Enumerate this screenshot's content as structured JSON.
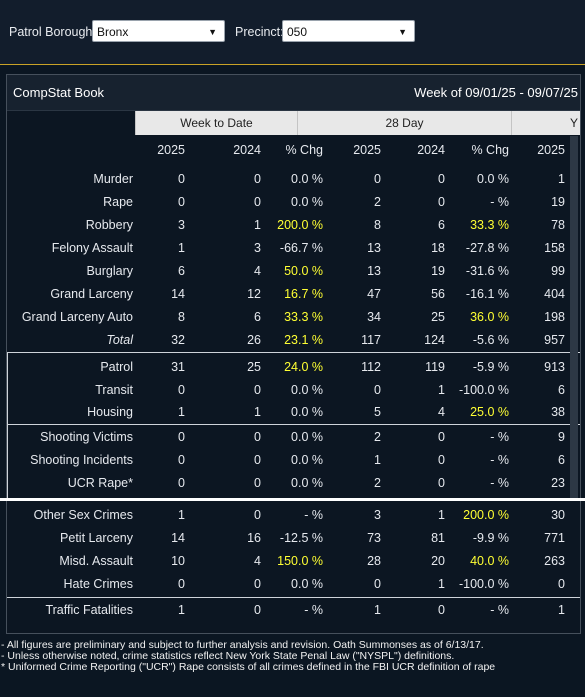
{
  "filters": {
    "borough_label": "Patrol Borough:",
    "borough_value": "Bronx",
    "precinct_label": "Precinct:",
    "precinct_value": "050"
  },
  "panel": {
    "title": "CompStat Book",
    "week": "Week of 09/01/25 - 09/07/25",
    "groups": [
      "Week to Date",
      "28 Day",
      "Y"
    ],
    "years": [
      "2025",
      "2024",
      "% Chg",
      "2025",
      "2024",
      "% Chg",
      "2025"
    ]
  },
  "rows": [
    {
      "label": "Murder",
      "italic": false,
      "v": [
        "0",
        "0",
        "0.0 %",
        "0",
        "0",
        "0.0 %",
        "1"
      ],
      "hi": [
        false,
        false,
        false,
        false,
        false,
        false,
        false
      ]
    },
    {
      "label": "Rape",
      "italic": false,
      "v": [
        "0",
        "0",
        "0.0 %",
        "2",
        "0",
        "- %",
        "19"
      ],
      "hi": [
        false,
        false,
        false,
        false,
        false,
        false,
        false
      ]
    },
    {
      "label": "Robbery",
      "italic": false,
      "v": [
        "3",
        "1",
        "200.0 %",
        "8",
        "6",
        "33.3 %",
        "78"
      ],
      "hi": [
        false,
        false,
        true,
        false,
        false,
        true,
        false
      ]
    },
    {
      "label": "Felony Assault",
      "italic": false,
      "v": [
        "1",
        "3",
        "-66.7 %",
        "13",
        "18",
        "-27.8 %",
        "158"
      ],
      "hi": [
        false,
        false,
        false,
        false,
        false,
        false,
        false
      ]
    },
    {
      "label": "Burglary",
      "italic": false,
      "v": [
        "6",
        "4",
        "50.0 %",
        "13",
        "19",
        "-31.6 %",
        "99"
      ],
      "hi": [
        false,
        false,
        true,
        false,
        false,
        false,
        false
      ]
    },
    {
      "label": "Grand Larceny",
      "italic": false,
      "v": [
        "14",
        "12",
        "16.7 %",
        "47",
        "56",
        "-16.1 %",
        "404"
      ],
      "hi": [
        false,
        false,
        true,
        false,
        false,
        false,
        false
      ]
    },
    {
      "label": "Grand Larceny Auto",
      "italic": false,
      "v": [
        "8",
        "6",
        "33.3 %",
        "34",
        "25",
        "36.0 %",
        "198"
      ],
      "hi": [
        false,
        false,
        true,
        false,
        false,
        true,
        false
      ]
    },
    {
      "label": "Total",
      "italic": true,
      "v": [
        "32",
        "26",
        "23.1 %",
        "117",
        "124",
        "-5.6 %",
        "957"
      ],
      "hi": [
        false,
        false,
        true,
        false,
        false,
        false,
        false
      ]
    },
    {
      "label": "Patrol",
      "italic": false,
      "v": [
        "31",
        "25",
        "24.0 %",
        "112",
        "119",
        "-5.9 %",
        "913"
      ],
      "hi": [
        false,
        false,
        true,
        false,
        false,
        false,
        false
      ]
    },
    {
      "label": "Transit",
      "italic": false,
      "v": [
        "0",
        "0",
        "0.0 %",
        "0",
        "1",
        "-100.0 %",
        "6"
      ],
      "hi": [
        false,
        false,
        false,
        false,
        false,
        false,
        false
      ]
    },
    {
      "label": "Housing",
      "italic": false,
      "v": [
        "1",
        "1",
        "0.0 %",
        "5",
        "4",
        "25.0 %",
        "38"
      ],
      "hi": [
        false,
        false,
        false,
        false,
        false,
        true,
        false
      ]
    },
    {
      "label": "Shooting Victims",
      "italic": false,
      "v": [
        "0",
        "0",
        "0.0 %",
        "2",
        "0",
        "- %",
        "9"
      ],
      "hi": [
        false,
        false,
        false,
        false,
        false,
        false,
        false
      ]
    },
    {
      "label": "Shooting Incidents",
      "italic": false,
      "v": [
        "0",
        "0",
        "0.0 %",
        "1",
        "0",
        "- %",
        "6"
      ],
      "hi": [
        false,
        false,
        false,
        false,
        false,
        false,
        false
      ]
    },
    {
      "label": "UCR Rape*",
      "italic": false,
      "v": [
        "0",
        "0",
        "0.0 %",
        "2",
        "0",
        "- %",
        "23"
      ],
      "hi": [
        false,
        false,
        false,
        false,
        false,
        false,
        false
      ]
    },
    {
      "label": "Other Sex Crimes",
      "italic": false,
      "v": [
        "1",
        "0",
        "- %",
        "3",
        "1",
        "200.0 %",
        "30"
      ],
      "hi": [
        false,
        false,
        false,
        false,
        false,
        true,
        false
      ]
    },
    {
      "label": "Petit Larceny",
      "italic": false,
      "v": [
        "14",
        "16",
        "-12.5 %",
        "73",
        "81",
        "-9.9 %",
        "771"
      ],
      "hi": [
        false,
        false,
        false,
        false,
        false,
        false,
        false
      ]
    },
    {
      "label": "Misd. Assault",
      "italic": false,
      "v": [
        "10",
        "4",
        "150.0 %",
        "28",
        "20",
        "40.0 %",
        "263"
      ],
      "hi": [
        false,
        false,
        true,
        false,
        false,
        true,
        false
      ]
    },
    {
      "label": "Hate Crimes",
      "italic": false,
      "v": [
        "0",
        "0",
        "0.0 %",
        "0",
        "1",
        "-100.0 %",
        "0"
      ],
      "hi": [
        false,
        false,
        false,
        false,
        false,
        false,
        false
      ]
    },
    {
      "label": "Traffic Fatalities",
      "italic": false,
      "v": [
        "1",
        "0",
        "- %",
        "1",
        "0",
        "- %",
        "1"
      ],
      "hi": [
        false,
        false,
        false,
        false,
        false,
        false,
        false
      ]
    }
  ],
  "footer": [
    "- All figures are preliminary and subject to further analysis and revision. Oath Summonses as of 6/13/17.",
    "- Unless otherwise noted, crime statistics reflect New York State Penal Law (\"NYSPL\") definitions.",
    "* Uniformed Crime Reporting (\"UCR\") Rape consists of all crimes defined in the FBI UCR definition of rape"
  ],
  "colors": {
    "highlight": "#ffff33",
    "background": "#0b1622"
  },
  "icons": {
    "dropdown": "chevron-down-icon"
  }
}
